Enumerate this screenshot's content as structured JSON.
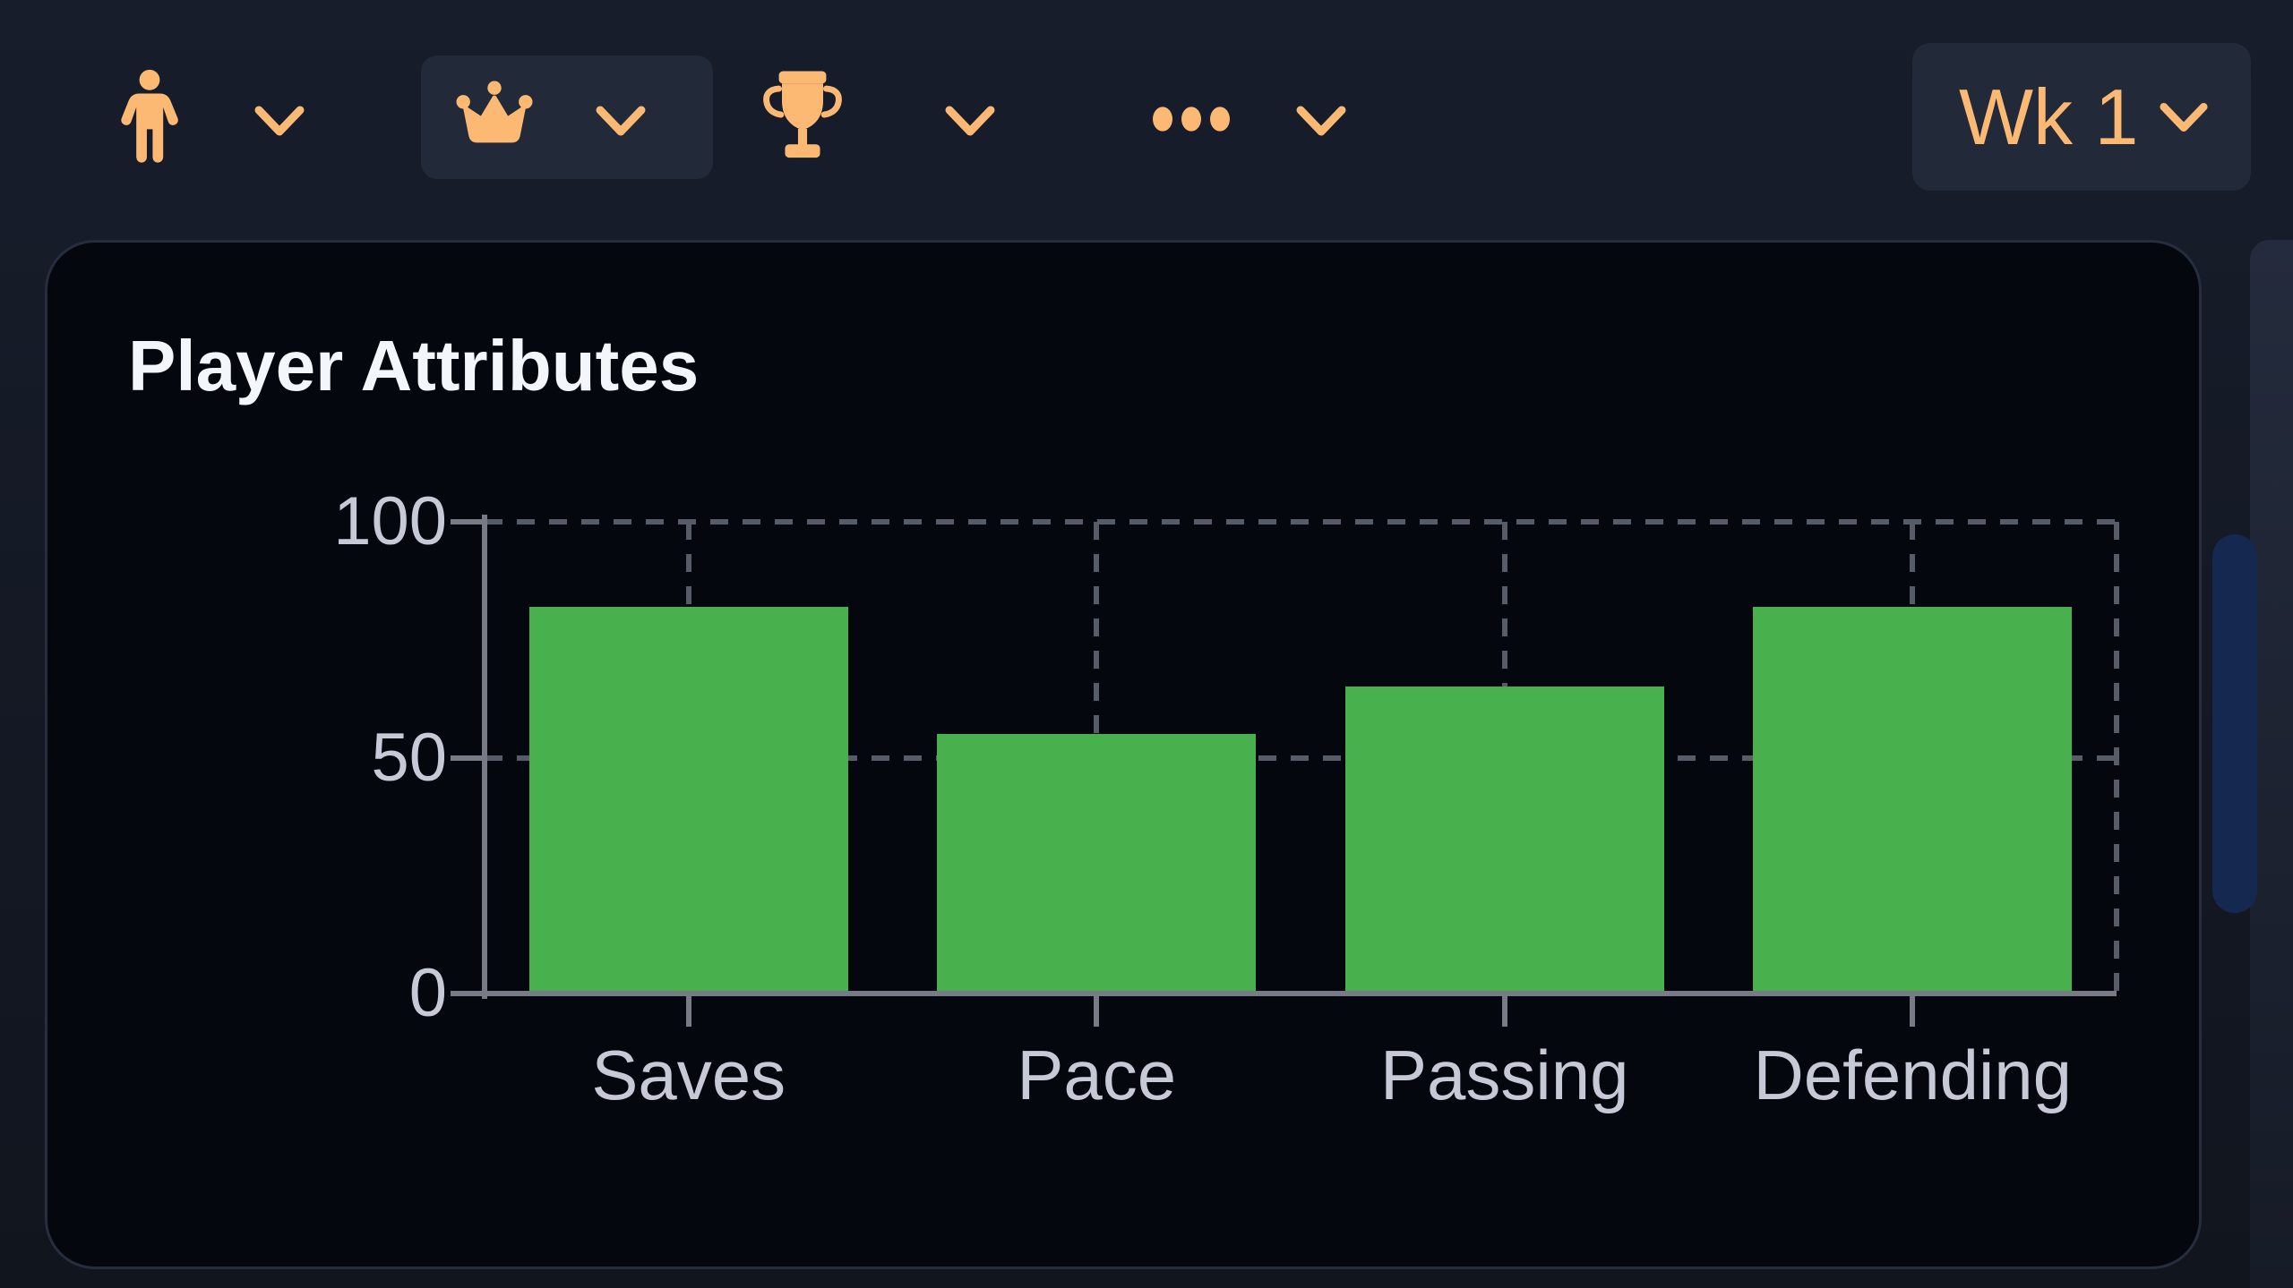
{
  "toolbar": {
    "tabs": [
      {
        "id": "player",
        "icon": "person-icon",
        "selected": false
      },
      {
        "id": "captain",
        "icon": "crown-icon",
        "selected": true
      },
      {
        "id": "trophy",
        "icon": "trophy-icon",
        "selected": false
      },
      {
        "id": "more",
        "icon": "ellipsis-icon",
        "selected": false
      }
    ],
    "week_selector": {
      "label": "Wk 1",
      "icon": "chevron-down-icon"
    }
  },
  "card": {
    "title": "Player Attributes"
  },
  "chart_data": {
    "type": "bar",
    "title": "Player Attributes",
    "categories": [
      "Saves",
      "Pace",
      "Passing",
      "Defending"
    ],
    "values": [
      82,
      55,
      65,
      82
    ],
    "xlabel": "",
    "ylabel": "",
    "ylim": [
      0,
      100
    ],
    "yticks": [
      100,
      50,
      0
    ],
    "grid": "dashed",
    "legend": "none",
    "bar_color": "#48b14e"
  },
  "colors": {
    "page_bg_top": "#171d2b",
    "page_bg_bottom": "#11151e",
    "card_bg": "#04070e",
    "card_border": "#262e3e",
    "chip_bg": "#222938",
    "accent_orange": "#fbb974",
    "bar_green": "#48b14e",
    "axis": "#767b85",
    "grid": "#575d68",
    "tick_label": "#c5cad6",
    "title": "#f3f6fa",
    "scroll_thumb": "#152850",
    "peek_strip_top": "#242b3c",
    "peek_strip_bottom": "#161b27"
  }
}
